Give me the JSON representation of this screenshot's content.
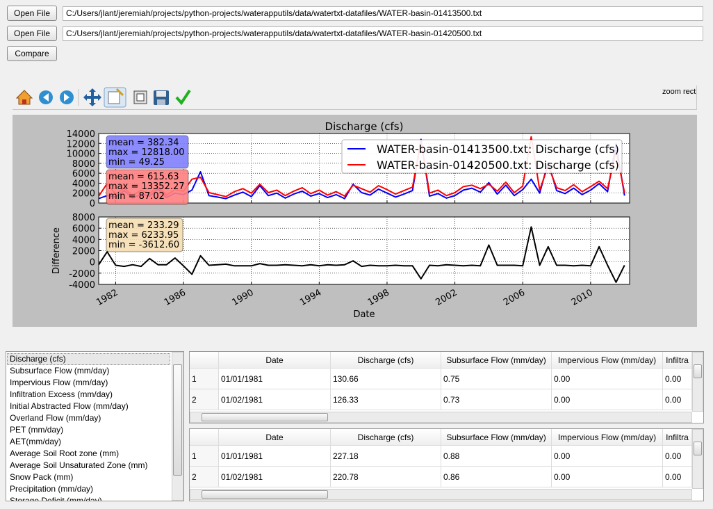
{
  "files": [
    {
      "button": "Open File",
      "path": "C:/Users/jlant/jeremiah/projects/python-projects/waterapputils/data/watertxt-datafiles/WATER-basin-01413500.txt"
    },
    {
      "button": "Open File",
      "path": "C:/Users/jlant/jeremiah/projects/python-projects/waterapputils/data/watertxt-datafiles/WATER-basin-01420500.txt"
    }
  ],
  "compare_button": "Compare",
  "toolbar": {
    "mode": "zoom rect"
  },
  "chart_data": [
    {
      "type": "line",
      "title": "Discharge (cfs)",
      "xlim": [
        1981.0,
        2012.3
      ],
      "ylim": [
        0,
        14000
      ],
      "yticks": [
        0,
        2000,
        4000,
        6000,
        8000,
        10000,
        12000,
        14000
      ],
      "grid": true,
      "legend": "upper right",
      "x": [
        1981.0,
        1981.5,
        1982.0,
        1982.5,
        1983.0,
        1983.5,
        1984.0,
        1984.5,
        1985.0,
        1985.5,
        1986.0,
        1986.5,
        1987.0,
        1987.5,
        1988.0,
        1988.5,
        1989.0,
        1989.5,
        1990.0,
        1990.5,
        1991.0,
        1991.5,
        1992.0,
        1992.5,
        1993.0,
        1993.5,
        1994.0,
        1994.5,
        1995.0,
        1995.5,
        1996.0,
        1996.5,
        1997.0,
        1997.5,
        1998.0,
        1998.5,
        1999.0,
        1999.5,
        2000.0,
        2000.5,
        2001.0,
        2001.5,
        2002.0,
        2002.5,
        2003.0,
        2003.5,
        2004.0,
        2004.5,
        2005.0,
        2005.5,
        2006.0,
        2006.5,
        2007.0,
        2007.5,
        2008.0,
        2008.5,
        2009.0,
        2009.5,
        2010.0,
        2010.5,
        2011.0,
        2011.5,
        2012.0
      ],
      "series": [
        {
          "name": "WATER-basin-01413500.txt: Discharge (cfs)",
          "color": "#0000ff",
          "values": [
            900,
            1500,
            1200,
            2500,
            1000,
            1800,
            1400,
            2800,
            1100,
            2000,
            1700,
            2600,
            6300,
            1500,
            1200,
            900,
            1600,
            2200,
            1300,
            3500,
            1500,
            2000,
            1000,
            1800,
            2400,
            1400,
            1900,
            1100,
            1700,
            900,
            3800,
            2100,
            1600,
            2800,
            2000,
            1200,
            1800,
            2500,
            12818,
            1400,
            1900,
            1000,
            1500,
            2600,
            3000,
            2200,
            4100,
            1800,
            3600,
            1500,
            2700,
            4800,
            2000,
            8200,
            2500,
            1900,
            3000,
            1700,
            2600,
            3900,
            2300,
            12000,
            1500
          ]
        },
        {
          "name": "WATER-basin-01420500.txt: Discharge (cfs)",
          "color": "#ff0000",
          "values": [
            1400,
            3900,
            1800,
            3000,
            1500,
            2600,
            1900,
            3300,
            1600,
            2700,
            2400,
            4800,
            5200,
            2100,
            1700,
            1300,
            2300,
            2900,
            2000,
            3800,
            2100,
            2600,
            1500,
            2400,
            3100,
            1900,
            2600,
            1600,
            2300,
            1400,
            3600,
            2900,
            2200,
            3500,
            2700,
            1800,
            2500,
            3200,
            12500,
            2000,
            2600,
            1500,
            2100,
            3300,
            3600,
            2900,
            3800,
            2400,
            4200,
            2100,
            3400,
            13352,
            2600,
            7500,
            3100,
            2500,
            3700,
            2300,
            3300,
            4400,
            2900,
            10500,
            2100
          ]
        }
      ],
      "annotations": [
        {
          "lines": [
            "mean = 382.34",
            "max = 12818.00",
            "min = 49.25"
          ],
          "color": "#8080ff"
        },
        {
          "lines": [
            "mean = 615.63",
            "max = 13352.27",
            "min = 87.02"
          ],
          "color": "#ff8080"
        }
      ]
    },
    {
      "type": "line",
      "xlabel": "Date",
      "ylabel": "Difference",
      "xlim": [
        1981.0,
        2012.3
      ],
      "xticks": [
        1982,
        1986,
        1990,
        1994,
        1998,
        2002,
        2006,
        2010
      ],
      "ylim": [
        -4000,
        8000
      ],
      "yticks": [
        -4000,
        -2000,
        0,
        2000,
        4000,
        6000,
        8000
      ],
      "grid": true,
      "x": [
        1981.0,
        1981.5,
        1982.0,
        1982.5,
        1983.0,
        1983.5,
        1984.0,
        1984.5,
        1985.0,
        1985.5,
        1986.0,
        1986.5,
        1987.0,
        1987.5,
        1988.0,
        1988.5,
        1989.0,
        1989.5,
        1990.0,
        1990.5,
        1991.0,
        1991.5,
        1992.0,
        1992.5,
        1993.0,
        1993.5,
        1994.0,
        1994.5,
        1995.0,
        1995.5,
        1996.0,
        1996.5,
        1997.0,
        1997.5,
        1998.0,
        1998.5,
        1999.0,
        1999.5,
        2000.0,
        2000.5,
        2001.0,
        2001.5,
        2002.0,
        2002.5,
        2003.0,
        2003.5,
        2004.0,
        2004.5,
        2005.0,
        2005.5,
        2006.0,
        2006.5,
        2007.0,
        2007.5,
        2008.0,
        2008.5,
        2009.0,
        2009.5,
        2010.0,
        2010.5,
        2011.0,
        2011.5,
        2012.0
      ],
      "series": [
        {
          "name": "Difference",
          "color": "#000000",
          "values": [
            -500,
            1800,
            -600,
            -800,
            -500,
            -800,
            600,
            -500,
            -500,
            700,
            -700,
            -2200,
            1100,
            -600,
            -500,
            -400,
            -700,
            -700,
            -700,
            -300,
            -600,
            -600,
            -500,
            -600,
            -700,
            -500,
            -700,
            -500,
            -600,
            -500,
            200,
            -800,
            -600,
            -700,
            -700,
            -600,
            -700,
            -700,
            -3000,
            -600,
            -700,
            -500,
            -600,
            -700,
            -600,
            -700,
            3000,
            -600,
            -600,
            -600,
            -700,
            6234,
            -600,
            2700,
            -600,
            -600,
            -700,
            -600,
            -700,
            2700,
            -600,
            -3613,
            -600
          ]
        }
      ],
      "annotations": [
        {
          "lines": [
            "mean = 233.29",
            "max = 6233.95",
            "min = -3612.60"
          ],
          "color": "#f5deb3"
        }
      ]
    }
  ],
  "variables": {
    "selected": 0,
    "items": [
      "Discharge (cfs)",
      "Subsurface Flow (mm/day)",
      "Impervious Flow (mm/day)",
      "Infiltration Excess (mm/day)",
      "Initial Abstracted Flow (mm/day)",
      "Overland Flow (mm/day)",
      "PET (mm/day)",
      "AET(mm/day)",
      "Average Soil Root zone (mm)",
      "Average Soil Unsaturated Zone (mm)",
      "Snow Pack (mm)",
      "Precipitation (mm/day)",
      "Storage Deficit (mm/day)"
    ]
  },
  "tables": [
    {
      "columns": [
        "Date",
        "Discharge (cfs)",
        "Subsurface Flow (mm/day)",
        "Impervious Flow (mm/day)",
        "Infiltra"
      ],
      "rows": [
        {
          "header": "1",
          "cells": [
            "01/01/1981",
            "130.66",
            "0.75",
            "0.00",
            "0.00"
          ]
        },
        {
          "header": "2",
          "cells": [
            "01/02/1981",
            "126.33",
            "0.73",
            "0.00",
            "0.00"
          ]
        }
      ]
    },
    {
      "columns": [
        "Date",
        "Discharge (cfs)",
        "Subsurface Flow (mm/day)",
        "Impervious Flow (mm/day)",
        "Infiltra"
      ],
      "rows": [
        {
          "header": "1",
          "cells": [
            "01/01/1981",
            "227.18",
            "0.88",
            "0.00",
            "0.00"
          ]
        },
        {
          "header": "2",
          "cells": [
            "01/02/1981",
            "220.78",
            "0.86",
            "0.00",
            "0.00"
          ]
        }
      ]
    }
  ]
}
